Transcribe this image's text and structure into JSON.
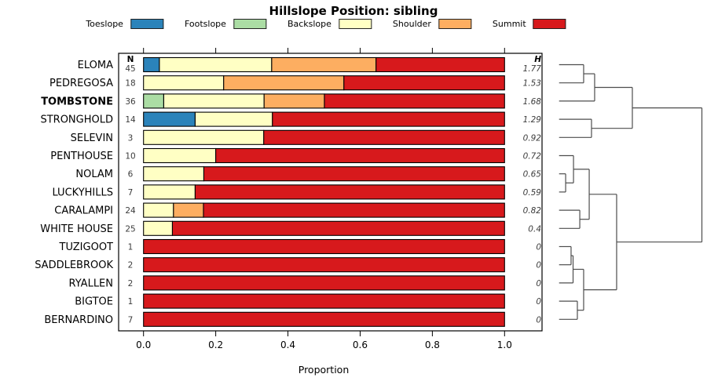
{
  "title": "Hillslope Position: sibling",
  "legend": {
    "items": [
      {
        "label": "Toeslope",
        "color": "#2B83BA"
      },
      {
        "label": "Footslope",
        "color": "#ABDDA4"
      },
      {
        "label": "Backslope",
        "color": "#FFFFC4"
      },
      {
        "label": "Shoulder",
        "color": "#FDAE61"
      },
      {
        "label": "Summit",
        "color": "#D7191C"
      }
    ]
  },
  "chart_data": {
    "type": "bar",
    "subtype": "horizontal-stacked-proportion",
    "title": "Hillslope Position: sibling",
    "xlabel": "Proportion",
    "xlim": [
      0,
      1
    ],
    "x_ticks": [
      {
        "label": "0.0",
        "v": 0.0
      },
      {
        "label": "0.2",
        "v": 0.2
      },
      {
        "label": "0.4",
        "v": 0.4
      },
      {
        "label": "0.6",
        "v": 0.6
      },
      {
        "label": "0.8",
        "v": 0.8
      },
      {
        "label": "1.0",
        "v": 1.0
      }
    ],
    "legend_position": "top",
    "n_header": "N",
    "h_header": "H",
    "categories": [
      "ELOMA",
      "PEDREGOSA",
      "TOMBSTONE",
      "STRONGHOLD",
      "SELEVIN",
      "PENTHOUSE",
      "NOLAM",
      "LUCKYHILLS",
      "CARALAMPI",
      "WHITE HOUSE",
      "TUZIGOOT",
      "SADDLEBROOK",
      "RYALLEN",
      "BIGTOE",
      "BERNARDINO"
    ],
    "bold_category": "TOMBSTONE",
    "n_values": [
      "45",
      "18",
      "36",
      "14",
      "3",
      "10",
      "6",
      "7",
      "24",
      "25",
      "1",
      "2",
      "2",
      "1",
      "7"
    ],
    "h_values": [
      "1.77",
      "1.53",
      "1.68",
      "1.29",
      "0.92",
      "0.72",
      "0.65",
      "0.59",
      "0.82",
      "0.4",
      "0",
      "0",
      "0",
      "0",
      "0"
    ],
    "series": [
      {
        "name": "Toeslope",
        "color": "#2B83BA",
        "values": [
          0.044,
          0,
          0,
          0.143,
          0,
          0,
          0,
          0,
          0,
          0,
          0,
          0,
          0,
          0,
          0
        ]
      },
      {
        "name": "Footslope",
        "color": "#ABDDA4",
        "values": [
          0,
          0,
          0.056,
          0,
          0,
          0,
          0,
          0,
          0,
          0,
          0,
          0,
          0,
          0,
          0
        ]
      },
      {
        "name": "Backslope",
        "color": "#FFFFC4",
        "values": [
          0.311,
          0.222,
          0.278,
          0.214,
          0.333,
          0.2,
          0.167,
          0.143,
          0.083,
          0.08,
          0,
          0,
          0,
          0,
          0
        ]
      },
      {
        "name": "Shoulder",
        "color": "#FDAE61",
        "values": [
          0.289,
          0.333,
          0.167,
          0,
          0,
          0,
          0,
          0,
          0.083,
          0,
          0,
          0,
          0,
          0,
          0
        ]
      },
      {
        "name": "Summit",
        "color": "#D7191C",
        "values": [
          0.356,
          0.445,
          0.499,
          0.643,
          0.667,
          0.8,
          0.833,
          0.857,
          0.834,
          0.92,
          1,
          1,
          1,
          1,
          1
        ]
      }
    ],
    "dendrogram": {
      "side": "right",
      "merges": [
        [
          0,
          1,
          0.172
        ],
        [
          "m0",
          2,
          0.249
        ],
        [
          3,
          4,
          0.227
        ],
        [
          "m1",
          "m2",
          0.513
        ],
        [
          6,
          7,
          0.046
        ],
        [
          5,
          "m4",
          0.101
        ],
        [
          8,
          9,
          0.145
        ],
        [
          "m5",
          "m6",
          0.211
        ],
        [
          10,
          11,
          0.084
        ],
        [
          "m8",
          12,
          0.098
        ],
        [
          13,
          14,
          0.128
        ],
        [
          "m9",
          "m10",
          0.172
        ],
        [
          "m7",
          "m11",
          0.403
        ],
        [
          "m3",
          "m12",
          1.0
        ]
      ]
    }
  }
}
